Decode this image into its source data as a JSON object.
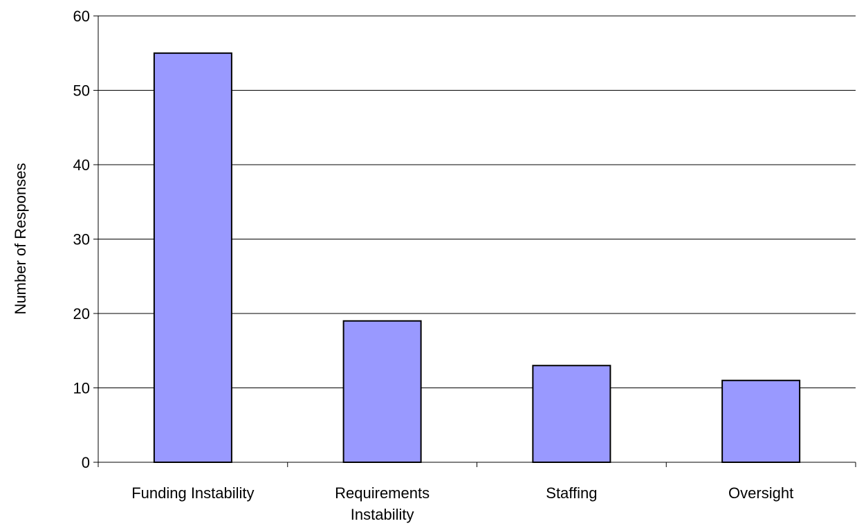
{
  "chart_data": {
    "type": "bar",
    "title": "",
    "xlabel": "",
    "ylabel": "Number of Responses",
    "categories": [
      [
        "Funding Instability"
      ],
      [
        "Requirements",
        "Instability"
      ],
      [
        "Staffing"
      ],
      [
        "Oversight"
      ]
    ],
    "values": [
      55,
      19,
      13,
      11
    ],
    "ylim": [
      0,
      60
    ],
    "yticks": [
      0,
      10,
      20,
      30,
      40,
      50,
      60
    ],
    "grid": true,
    "legend": "none",
    "colors": {
      "bar_fill": "#9999ff",
      "bar_stroke": "#000000",
      "gridline": "#000000",
      "axis": "#000000"
    }
  }
}
